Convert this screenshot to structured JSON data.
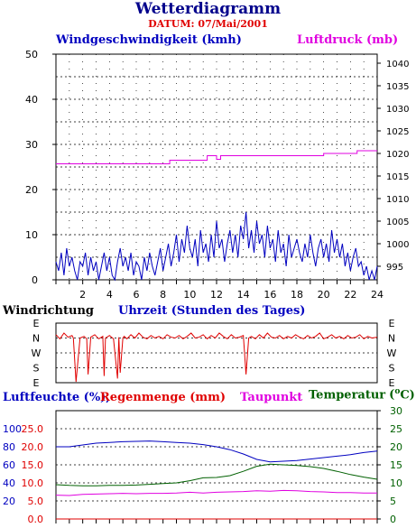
{
  "header": {
    "title": "Wetterdiagramm",
    "date_label": "DATUM: 07/Mai/2001"
  },
  "colors": {
    "wind": "#0000c0",
    "pressure": "#e000e0",
    "direction": "#e00000",
    "humidity": "#0000c0",
    "rain": "#e00000",
    "dewpoint": "#e000e0",
    "temperature": "#006000",
    "axis": "#000000",
    "grid": "#000000"
  },
  "chart_data": [
    {
      "id": "wind_pressure",
      "type": "line",
      "left_label": "Windgeschwindigkeit (kmh)",
      "right_label": "Luftdruck (mb)",
      "x_label": "Uhrzeit (Stunden des Tages)",
      "x_range": [
        0,
        24
      ],
      "x_ticks": [
        "2",
        "4",
        "6",
        "8",
        "10",
        "12",
        "14",
        "16",
        "18",
        "20",
        "22",
        "24"
      ],
      "y_left_range": [
        0,
        50
      ],
      "y_left_ticks": [
        "0",
        "10",
        "20",
        "30",
        "40",
        "50"
      ],
      "y_right_range": [
        992,
        1042
      ],
      "y_right_ticks": [
        "995",
        "1000",
        "1005",
        "1010",
        "1015",
        "1020",
        "1025",
        "1030",
        "1035",
        "1040"
      ],
      "grid": true,
      "series": [
        {
          "name": "Windgeschwindigkeit",
          "axis": "left",
          "x": [
            0,
            0.2,
            0.4,
            0.6,
            0.8,
            1,
            1.2,
            1.4,
            1.6,
            1.8,
            2,
            2.2,
            2.4,
            2.6,
            2.8,
            3,
            3.2,
            3.4,
            3.6,
            3.8,
            4,
            4.2,
            4.4,
            4.6,
            4.8,
            5,
            5.2,
            5.4,
            5.6,
            5.8,
            6,
            6.2,
            6.4,
            6.6,
            6.8,
            7,
            7.2,
            7.4,
            7.6,
            7.8,
            8,
            8.2,
            8.4,
            8.6,
            8.8,
            9,
            9.2,
            9.4,
            9.6,
            9.8,
            10,
            10.2,
            10.4,
            10.6,
            10.8,
            11,
            11.2,
            11.4,
            11.6,
            11.8,
            12,
            12.2,
            12.4,
            12.6,
            12.8,
            13,
            13.2,
            13.4,
            13.6,
            13.8,
            14,
            14.2,
            14.4,
            14.6,
            14.8,
            15,
            15.2,
            15.4,
            15.6,
            15.8,
            16,
            16.2,
            16.4,
            16.6,
            16.8,
            17,
            17.2,
            17.4,
            17.6,
            17.8,
            18,
            18.2,
            18.4,
            18.6,
            18.8,
            19,
            19.2,
            19.4,
            19.6,
            19.8,
            20,
            20.2,
            20.4,
            20.6,
            20.8,
            21,
            21.2,
            21.4,
            21.6,
            21.8,
            22,
            22.2,
            22.4,
            22.6,
            22.8,
            23,
            23.2,
            23.4,
            23.6,
            23.8,
            24
          ],
          "values": [
            4,
            2,
            6,
            1,
            7,
            3,
            5,
            2,
            0,
            4,
            3,
            6,
            1,
            5,
            2,
            4,
            0,
            3,
            6,
            2,
            5,
            1,
            0,
            4,
            7,
            3,
            5,
            2,
            6,
            1,
            4,
            3,
            0,
            5,
            2,
            6,
            3,
            1,
            4,
            7,
            2,
            5,
            8,
            3,
            6,
            10,
            4,
            9,
            6,
            12,
            7,
            5,
            9,
            3,
            11,
            6,
            8,
            4,
            10,
            5,
            13,
            7,
            9,
            4,
            8,
            11,
            6,
            10,
            5,
            12,
            9,
            15,
            7,
            11,
            6,
            13,
            8,
            10,
            5,
            12,
            7,
            9,
            4,
            11,
            6,
            8,
            3,
            10,
            5,
            7,
            9,
            6,
            4,
            8,
            5,
            10,
            6,
            3,
            7,
            9,
            5,
            8,
            4,
            11,
            6,
            9,
            5,
            8,
            3,
            6,
            2,
            5,
            7,
            3,
            4,
            1,
            3,
            0,
            2,
            0,
            3
          ],
          "color": "#0000c0"
        },
        {
          "name": "Luftdruck",
          "axis": "right",
          "x": [
            0,
            8.5,
            8.5,
            11.3,
            11.3,
            12.0,
            12.0,
            12.3,
            12.3,
            20.0,
            20.0,
            22.5,
            22.5,
            24
          ],
          "values": [
            1017.7,
            1017.7,
            1018.5,
            1018.5,
            1019.5,
            1019.5,
            1018.7,
            1018.7,
            1019.5,
            1019.5,
            1020,
            1020,
            1020.6,
            1020.6
          ],
          "color": "#e000e0"
        }
      ]
    },
    {
      "id": "wind_direction",
      "type": "line",
      "label": "Windrichtung",
      "x_range": [
        0,
        24
      ],
      "direction_ticks": [
        "E",
        "N",
        "W",
        "S",
        "E"
      ],
      "grid": true,
      "series": [
        {
          "name": "Windrichtung",
          "x": [
            0,
            0.3,
            0.6,
            0.9,
            1.2,
            1.3,
            1.5,
            1.8,
            2.1,
            2.3,
            2.4,
            2.6,
            2.9,
            3.2,
            3.5,
            3.6,
            3.7,
            4.0,
            4.3,
            4.6,
            4.7,
            4.8,
            5.0,
            5.1,
            5.3,
            5.6,
            5.9,
            6.2,
            6.5,
            6.8,
            7.1,
            7.4,
            7.7,
            8.0,
            8.3,
            8.6,
            8.9,
            9.2,
            9.5,
            9.8,
            10.1,
            10.4,
            10.7,
            11.0,
            11.3,
            11.6,
            11.9,
            12.2,
            12.5,
            12.8,
            13.1,
            13.4,
            13.7,
            14.0,
            14.2,
            14.4,
            14.6,
            14.9,
            15.2,
            15.5,
            15.8,
            16.1,
            16.4,
            16.7,
            17.0,
            17.3,
            17.6,
            17.9,
            18.2,
            18.5,
            18.8,
            19.1,
            19.4,
            19.7,
            20.0,
            20.3,
            20.6,
            20.9,
            21.2,
            21.5,
            21.8,
            22.1,
            22.4,
            22.7,
            23.0,
            23.3,
            23.6,
            24
          ],
          "values": [
            70,
            95,
            60,
            85,
            75,
            90,
            355,
            90,
            80,
            95,
            310,
            85,
            70,
            95,
            80,
            320,
            90,
            75,
            95,
            335,
            85,
            300,
            90,
            80,
            95,
            70,
            90,
            60,
            85,
            95,
            75,
            90,
            80,
            95,
            70,
            85,
            90,
            75,
            95,
            80,
            60,
            90,
            85,
            70,
            95,
            75,
            90,
            60,
            80,
            95,
            70,
            90,
            85,
            75,
            310,
            90,
            80,
            95,
            70,
            90,
            60,
            85,
            90,
            75,
            95,
            80,
            90,
            70,
            85,
            95,
            75,
            90,
            80,
            60,
            95,
            85,
            70,
            90,
            80,
            95,
            75,
            90,
            85,
            70,
            95,
            80,
            90,
            85
          ],
          "color": "#e00000"
        }
      ]
    },
    {
      "id": "humidity_rain_temp",
      "type": "line",
      "labels": {
        "humidity": "Luftfeuchte (%),",
        "rain": "Regenmenge (mm)",
        "dewpoint": "Taupunkt",
        "temperature": "Temperatur",
        "temperature_unit": "(",
        "temperature_unit_o": "o",
        "temperature_unit_c": "C)"
      },
      "x_range": [
        0,
        24
      ],
      "humidity_range": [
        0,
        120
      ],
      "humidity_ticks": [
        "20",
        "40",
        "60",
        "80",
        "100"
      ],
      "rain_range": [
        0,
        30
      ],
      "rain_ticks": [
        "0.0",
        "5.0",
        "10.0",
        "15.0",
        "20.0",
        "25.0"
      ],
      "temperature_range": [
        0,
        30
      ],
      "temperature_ticks": [
        "0",
        "5",
        "10",
        "15",
        "20",
        "25",
        "30"
      ],
      "grid": true,
      "series": [
        {
          "name": "Luftfeuchte",
          "axis": "right",
          "x": [
            0,
            1,
            2,
            3,
            4,
            5,
            6,
            7,
            8,
            9,
            10,
            11,
            12,
            13,
            14,
            15,
            16,
            17,
            18,
            19,
            20,
            21,
            22,
            23,
            24
          ],
          "values": [
            20,
            20,
            20.5,
            21,
            21.2,
            21.4,
            21.5,
            21.6,
            21.4,
            21.2,
            21,
            20.6,
            20,
            19.2,
            18,
            16.5,
            15.8,
            16,
            16.2,
            16.6,
            17,
            17.4,
            17.8,
            18.4,
            18.8
          ],
          "color": "#0000c0"
        },
        {
          "name": "Temperatur",
          "axis": "right",
          "x": [
            0,
            1,
            2,
            3,
            4,
            5,
            6,
            7,
            8,
            9,
            10,
            11,
            12,
            13,
            14,
            15,
            16,
            17,
            18,
            19,
            20,
            21,
            22,
            23,
            24
          ],
          "values": [
            9.5,
            9.3,
            9.2,
            9.2,
            9.3,
            9.3,
            9.4,
            9.6,
            9.8,
            10.0,
            10.6,
            11.4,
            11.5,
            12.0,
            13.2,
            14.6,
            15.2,
            15.0,
            14.8,
            14.5,
            14.0,
            13.2,
            12.3,
            11.6,
            11.0
          ],
          "color": "#006000"
        },
        {
          "name": "Taupunkt",
          "axis": "right",
          "x": [
            0,
            1,
            2,
            3,
            4,
            5,
            6,
            7,
            8,
            9,
            10,
            11,
            12,
            13,
            14,
            15,
            16,
            17,
            18,
            19,
            20,
            21,
            22,
            23,
            24
          ],
          "values": [
            6.6,
            6.5,
            6.8,
            6.9,
            7.0,
            7.1,
            7.0,
            7.1,
            7.1,
            7.2,
            7.4,
            7.2,
            7.4,
            7.5,
            7.6,
            7.8,
            7.7,
            7.9,
            7.8,
            7.6,
            7.5,
            7.3,
            7.3,
            7.2,
            7.2
          ],
          "color": "#e000e0"
        },
        {
          "name": "Regenmenge",
          "axis": "left",
          "x": [
            0,
            24
          ],
          "values": [
            0,
            0
          ],
          "color": "#e00000"
        }
      ]
    }
  ]
}
